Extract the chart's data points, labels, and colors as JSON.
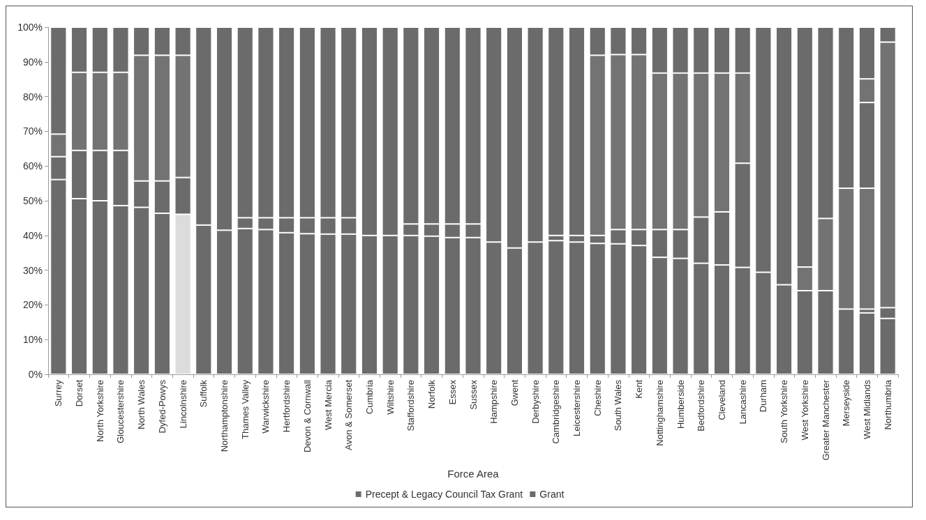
{
  "chart_data": {
    "type": "bar",
    "stacked": true,
    "xlabel": "Force Area",
    "legend": "bottom",
    "grid": false,
    "categories": [
      "Surrey",
      "Dorset",
      "North Yorkshire",
      "Gloucestershire",
      "North Wales",
      "Dyfed-Powys",
      "Lincolnshire",
      "Suffolk",
      "Northamptonshire",
      "Thames Valley",
      "Warwickshire",
      "Hertfordshire",
      "Devon & Cornwall",
      "West Mercia",
      "Avon & Somerset",
      "Cumbria",
      "Wiltshire",
      "Staffordshire",
      "Norfolk",
      "Essex",
      "Sussex",
      "Hampshire",
      "Gwent",
      "Derbyshire",
      "Cambridgeshire",
      "Leicestershire",
      "Cheshire",
      "South Wales",
      "Kent",
      "Nottinghamshire",
      "Humberside",
      "Bedfordshire",
      "Cleveland",
      "Lancashire",
      "Durham",
      "South Yorkshire",
      "West Yorkshire",
      "Greater Manchester",
      "Merseyside",
      "West Midlands",
      "Northumbria"
    ],
    "ylim": [
      0,
      100
    ],
    "yticks": [
      {
        "value": 0,
        "label": "0%"
      },
      {
        "value": 10,
        "label": "10%"
      },
      {
        "value": 20,
        "label": "20%"
      },
      {
        "value": 30,
        "label": "30%"
      },
      {
        "value": 40,
        "label": "40%"
      },
      {
        "value": 50,
        "label": "50%"
      },
      {
        "value": 60,
        "label": "60%"
      },
      {
        "value": 70,
        "label": "70%"
      },
      {
        "value": 80,
        "label": "80%"
      },
      {
        "value": 90,
        "label": "90%"
      },
      {
        "value": 100,
        "label": "100%"
      }
    ],
    "series": [
      {
        "name": "Precept & Legacy Council Tax Grant",
        "color": "#6b6b6b",
        "colors": [
          "#6b6b6b",
          "#6b6b6b",
          "#6b6b6b",
          "#6b6b6b",
          "#6b6b6b",
          "#6b6b6b",
          "#dcdcdc",
          "#6b6b6b",
          "#6b6b6b",
          "#6b6b6b",
          "#6b6b6b",
          "#6b6b6b",
          "#6b6b6b",
          "#6b6b6b",
          "#6b6b6b",
          "#6b6b6b",
          "#6b6b6b",
          "#6b6b6b",
          "#6b6b6b",
          "#6b6b6b",
          "#6b6b6b",
          "#6b6b6b",
          "#6b6b6b",
          "#6b6b6b",
          "#6b6b6b",
          "#6b6b6b",
          "#6b6b6b",
          "#6b6b6b",
          "#6b6b6b",
          "#6b6b6b",
          "#6b6b6b",
          "#6b6b6b",
          "#6b6b6b",
          "#6b6b6b",
          "#6b6b6b",
          "#6b6b6b",
          "#6b6b6b",
          "#6b6b6b",
          "#6b6b6b",
          "#6b6b6b",
          "#6b6b6b"
        ],
        "values": [
          56.1,
          50.6,
          50,
          48.6,
          48.1,
          46.4,
          46.1,
          43,
          41.5,
          42,
          41.7,
          40.8,
          40.5,
          40.4,
          40.4,
          40,
          40,
          40,
          39.8,
          39.4,
          39.4,
          38.1,
          36.4,
          38.1,
          38.5,
          38.1,
          37.7,
          37.6,
          37.1,
          33.7,
          33.4,
          32,
          31.5,
          30.8,
          29.4,
          25.8,
          24.1,
          24.1,
          18.8,
          17.7,
          16.1
        ]
      },
      {
        "color": "#6b6b6b",
        "values": [
          6.6,
          13.9,
          14.5,
          15.9,
          7.6,
          9.3,
          10.6,
          0,
          0,
          3.1,
          3.4,
          4.3,
          4.6,
          4.7,
          4.7,
          0,
          0,
          3.3,
          3.5,
          3.9,
          3.9,
          0,
          0,
          0,
          1.5,
          1.9,
          2.3,
          4.1,
          4.6,
          8,
          8.3,
          13.3,
          15.3,
          30,
          0,
          0,
          0,
          0,
          0,
          1.1,
          3.1
        ]
      },
      {
        "color": "#737373",
        "values": [
          6.5,
          22.5,
          22.5,
          22.5,
          36.2,
          36.2,
          35.2,
          0,
          0,
          0,
          0,
          0,
          0,
          0,
          0,
          0,
          0,
          0,
          0,
          0,
          0,
          0,
          0,
          0,
          0,
          0,
          51.9,
          50.4,
          50.4,
          45.1,
          45.1,
          41.5,
          40,
          26,
          0,
          0,
          6.8,
          20.8,
          34.8,
          34.8,
          76.5
        ]
      },
      {
        "color": "#6b6b6b",
        "values": [
          0,
          0,
          0,
          0,
          0,
          0,
          0,
          0,
          0,
          0,
          0,
          0,
          0,
          0,
          0,
          0,
          0,
          0,
          0,
          0,
          0,
          0,
          0,
          0,
          0,
          0,
          0,
          0,
          0,
          0,
          0,
          0,
          0,
          0,
          0,
          0,
          0,
          0,
          0,
          24.7,
          0
        ]
      },
      {
        "color": "#737373",
        "values": [
          0,
          0,
          0,
          0,
          0,
          0,
          0,
          0,
          0,
          0,
          0,
          0,
          0,
          0,
          0,
          0,
          0,
          0,
          0,
          0,
          0,
          0,
          0,
          0,
          0,
          0,
          0,
          0,
          0,
          0,
          0,
          0,
          0,
          0,
          0,
          0,
          0,
          0,
          0,
          6.8,
          0
        ]
      },
      {
        "name": "Grant",
        "color": "#6b6b6b",
        "values": [
          30.8,
          13,
          13,
          13,
          8.1,
          8.1,
          8.1,
          57,
          58.5,
          54.9,
          54.9,
          54.9,
          54.9,
          54.9,
          54.9,
          60,
          60,
          56.7,
          56.7,
          56.7,
          56.7,
          61.9,
          63.6,
          61.9,
          60,
          60,
          8.1,
          7.9,
          7.9,
          13.2,
          13.2,
          13.2,
          13.2,
          13.2,
          70.6,
          74.2,
          69.1,
          55.1,
          46.4,
          14.9,
          4.3
        ]
      }
    ]
  }
}
